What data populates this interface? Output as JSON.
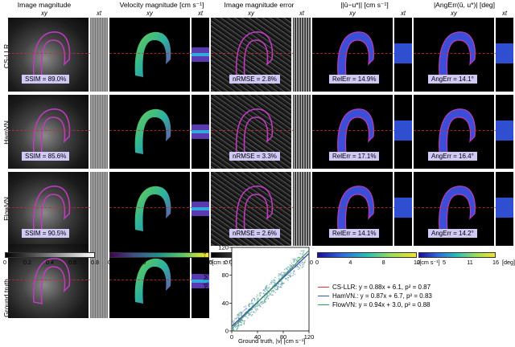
{
  "columns": [
    {
      "title": "Image magnitude",
      "sub": "xy"
    },
    {
      "title": "",
      "sub": "xt"
    },
    {
      "title": "Velocity magnitude [cm s⁻¹]",
      "sub": "xy"
    },
    {
      "title": "",
      "sub": "xt"
    },
    {
      "title": "Image magnitude error",
      "sub": "xy"
    },
    {
      "title": "",
      "sub": "xt"
    },
    {
      "title": "||û−u*|| [cm s⁻¹]",
      "sub": "xy"
    },
    {
      "title": "",
      "sub": "xt"
    },
    {
      "title": "|AngErr(û, u*)| [deg]",
      "sub": "xy"
    },
    {
      "title": "",
      "sub": "xt"
    }
  ],
  "rows": [
    {
      "label": "CS-LLR",
      "ssim": "SSIM = 89.0%",
      "nrmse": "nRMSE = 2.8%",
      "relerr": "RelErr = 14.9%",
      "angerr": "AngErr = 14.1°"
    },
    {
      "label": "HamVN",
      "ssim": "SSIM = 85.6%",
      "nrmse": "nRMSE = 3.3%",
      "relerr": "RelErr = 17.1%",
      "angerr": "AngErr = 16.4°"
    },
    {
      "label": "FlowVN",
      "ssim": "SSIM = 90.5%",
      "nrmse": "nRMSE = 2.6%",
      "relerr": "RelErr = 14.1%",
      "angerr": "AngErr = 14.2°"
    }
  ],
  "ground_truth_label": "Ground truth",
  "colorbars": [
    {
      "ticks": [
        "0",
        "0.2",
        "0.4",
        "0.6",
        "0.8"
      ],
      "unit": "",
      "colors": [
        "#000000",
        "#ffffff"
      ]
    },
    {
      "ticks": [
        "0",
        "30",
        "65",
        "95"
      ],
      "unit": "[cm s⁻¹]",
      "colors": [
        "#440154",
        "#3b528b",
        "#21918c",
        "#5ec962",
        "#fde725"
      ]
    },
    {
      "ticks": [
        "0",
        "0.02",
        "0.04",
        "0.06",
        "0.08",
        "0.10"
      ],
      "unit": "",
      "colors": [
        "#000000",
        "#ffffff"
      ]
    },
    {
      "ticks": [
        "0",
        "4",
        "8",
        "12"
      ],
      "unit": "[cm s⁻¹]",
      "colors": [
        "#1a0fa0",
        "#2d6be0",
        "#27c0b8",
        "#9be05a",
        "#f3e02a"
      ]
    },
    {
      "ticks": [
        "0",
        "5",
        "11",
        "16"
      ],
      "unit": "[deg]",
      "colors": [
        "#1a0fa0",
        "#2d6be0",
        "#27c0b8",
        "#9be05a",
        "#f3e02a"
      ]
    }
  ],
  "chart_data": {
    "type": "scatter",
    "xlabel": "Ground truth, |v| [cm s⁻¹]",
    "ylabel": "Estimated, |v| [cm s⁻¹]",
    "xlim": [
      0,
      120
    ],
    "ylim": [
      0,
      120
    ],
    "xticks": [
      0,
      40,
      80,
      120
    ],
    "yticks": [
      0,
      40,
      80,
      120
    ],
    "series": [
      {
        "name": "CS-LLR: y = 0.88x + 6.1, p² = 0.87",
        "color": "#e0362c",
        "slope": 0.88,
        "intercept": 6.1
      },
      {
        "name": "HamVN.: y = 0.87x + 6.7, p² = 0.83",
        "color": "#2a56c6",
        "slope": 0.87,
        "intercept": 6.7
      },
      {
        "name": "FlowVN: y = 0.94x + 3.0, p² = 0.88",
        "color": "#2f9e61",
        "slope": 0.94,
        "intercept": 3.0
      }
    ]
  }
}
